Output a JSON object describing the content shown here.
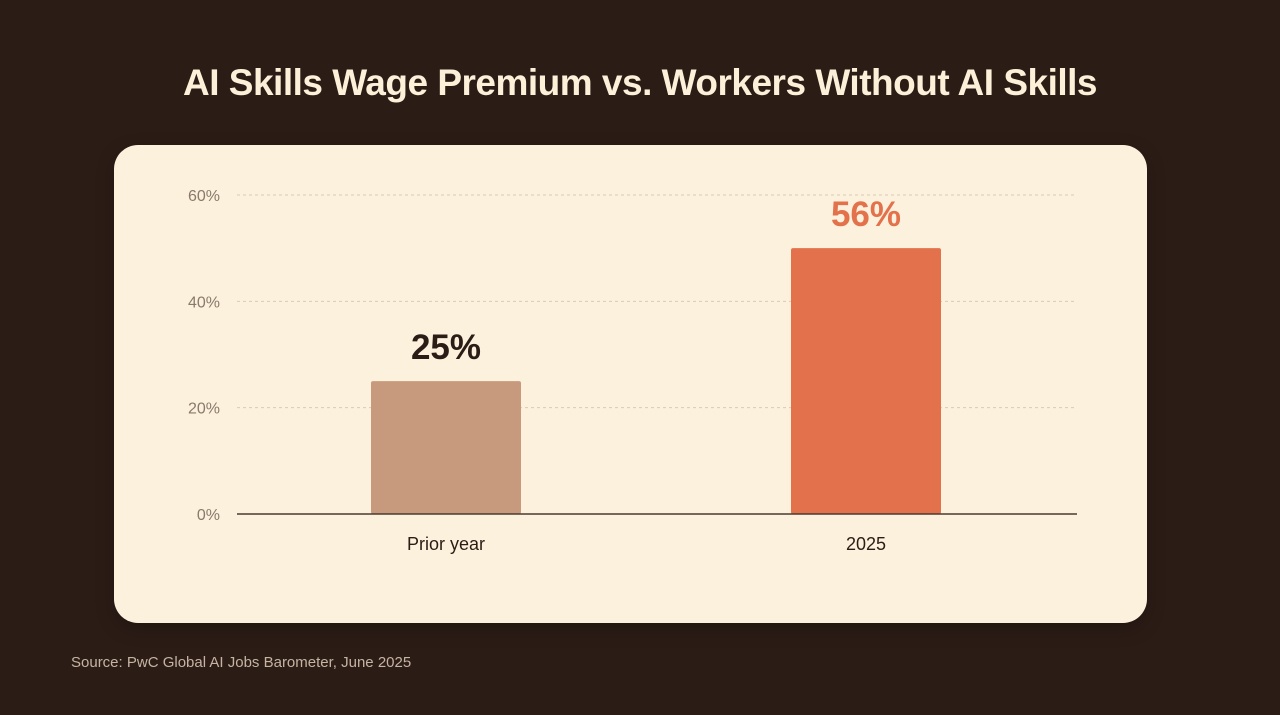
{
  "chart_data": {
    "type": "bar",
    "title": "AI Skills Wage Premium vs. Workers Without AI Skills",
    "categories": [
      "Prior year",
      "2025"
    ],
    "values": [
      25,
      56
    ],
    "data_labels": [
      "25%",
      "56%"
    ],
    "ylim": [
      0,
      60
    ],
    "yticks": [
      0,
      20,
      40,
      60
    ],
    "ytick_labels": [
      "0%",
      "20%",
      "40%",
      "60%"
    ],
    "xlabel": "",
    "ylabel": "",
    "grid": true,
    "bar_colors": [
      "#c79a7d",
      "#e3714b"
    ],
    "label_colors": [
      "#2c1c16",
      "#e3714b"
    ]
  },
  "source": "Source: PwC Global AI Jobs Barometer, June 2025"
}
